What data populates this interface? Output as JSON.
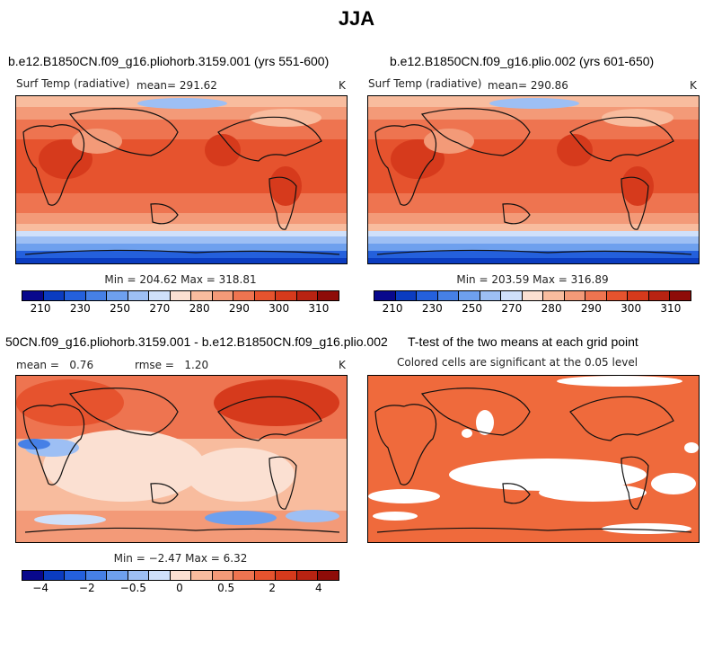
{
  "title": "JJA",
  "chart_data": [
    {
      "type": "heatmap",
      "panel": "top-left",
      "title": "b.e12.B1850CN.f09_g16.pliohorb.3159.001 (yrs 551-600)",
      "variable_label": "Surf Temp (radiative)",
      "mean_label": "mean=",
      "mean": "291.62",
      "units": "K",
      "min_max_text": "Min = 204.62 Max = 318.81",
      "min": 204.62,
      "max": 318.81,
      "colorbar_ticks": [
        "210",
        "230",
        "250",
        "270",
        "280",
        "290",
        "300",
        "310"
      ]
    },
    {
      "type": "heatmap",
      "panel": "top-right",
      "title": "b.e12.B1850CN.f09_g16.plio.002 (yrs 601-650)",
      "variable_label": "Surf Temp (radiative)",
      "mean_label": "mean=",
      "mean": "290.86",
      "units": "K",
      "min_max_text": "Min = 203.59 Max = 316.89",
      "min": 203.59,
      "max": 316.89,
      "colorbar_ticks": [
        "210",
        "230",
        "250",
        "270",
        "280",
        "290",
        "300",
        "310"
      ]
    },
    {
      "type": "heatmap",
      "panel": "bottom-left",
      "title": "50CN.f09_g16.pliohorb.3159.001 - b.e12.B1850CN.f09_g16.plio.002",
      "mean_text": "mean =",
      "mean": "0.76",
      "rmse_text": "rmse =",
      "rmse": "1.20",
      "units": "K",
      "min_max_text": "Min = −2.47 Max = 6.32",
      "min": -2.47,
      "max": 6.32,
      "colorbar_ticks": [
        "−4",
        "−2",
        "−0.5",
        "0",
        "0.5",
        "2",
        "4"
      ]
    },
    {
      "type": "heatmap",
      "panel": "bottom-right",
      "title": "T-test of the two means at each grid point",
      "subtitle": "Colored cells are significant at the 0.05 level"
    }
  ],
  "colors": {
    "abs_scale": [
      "#08088c",
      "#0b3cc0",
      "#2460dc",
      "#4680e6",
      "#6ea0ee",
      "#9dbff4",
      "#cfe0fa",
      "#fbe0d2",
      "#f8bc9e",
      "#f39a78",
      "#ee7450",
      "#e6532e",
      "#d63a1c",
      "#b82312",
      "#8e0c08"
    ],
    "diff_scale": [
      "#08088c",
      "#0b3cc0",
      "#2460dc",
      "#4680e6",
      "#6ea0ee",
      "#9dbff4",
      "#cfe0fa",
      "#fbe0d2",
      "#f8bc9e",
      "#f39a78",
      "#ee7450",
      "#e6532e",
      "#d63a1c",
      "#b82312",
      "#8e0c08"
    ],
    "significant": "#ef6a3c"
  }
}
